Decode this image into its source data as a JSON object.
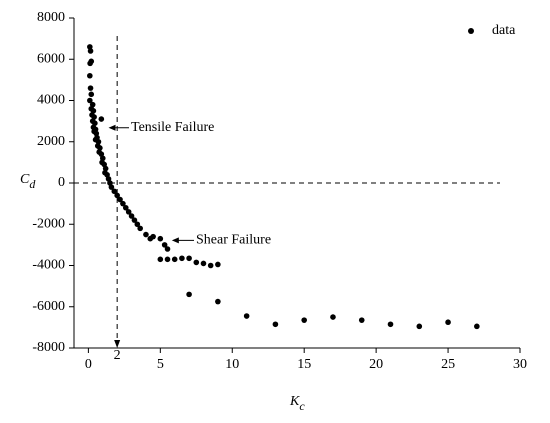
{
  "chart_data": {
    "type": "scatter",
    "xlabel": "K",
    "xlabel_subscript": "c",
    "ylabel": "C",
    "ylabel_subscript": "d",
    "xlim": [
      -1,
      30
    ],
    "xticks": [
      0,
      5,
      10,
      15,
      20,
      25,
      30
    ],
    "ylim": [
      -8000,
      8000
    ],
    "yticks": [
      -8000,
      -6000,
      -4000,
      -2000,
      0,
      2000,
      4000,
      6000,
      8000
    ],
    "grid": false,
    "legend": "upper right",
    "vline": 2,
    "hline": 0,
    "annotations": [
      "Tensile Failure",
      "Shear Failure"
    ],
    "series": [
      {
        "name": "data",
        "color": "#000000",
        "x": [
          0.1,
          0.15,
          0.2,
          0.12,
          0.1,
          0.15,
          0.2,
          0.1,
          0.3,
          0.2,
          0.35,
          0.25,
          0.4,
          0.3,
          0.45,
          0.35,
          0.5,
          0.4,
          0.55,
          0.6,
          0.5,
          0.7,
          0.65,
          0.8,
          0.75,
          0.9,
          1.0,
          0.95,
          1.1,
          1.2,
          1.15,
          1.3,
          1.4,
          1.5,
          1.6,
          1.8,
          2.0,
          2.2,
          2.4,
          2.6,
          2.8,
          3.0,
          3.2,
          3.4,
          3.6,
          4.0,
          4.5,
          4.3,
          5.0,
          5.3,
          5.5,
          0.9,
          5.0,
          5.5,
          6.0,
          6.5,
          7.0,
          7.5,
          8.0,
          8.5,
          9.0,
          7.0,
          9.0,
          11,
          13,
          15,
          17,
          19,
          21,
          23,
          25,
          27
        ],
        "values": [
          6600,
          6400,
          5900,
          5800,
          5200,
          4600,
          4300,
          4000,
          3800,
          3600,
          3500,
          3300,
          3200,
          3000,
          2900,
          2700,
          2600,
          2500,
          2400,
          2200,
          2100,
          2000,
          1800,
          1700,
          1500,
          1400,
          1200,
          1000,
          900,
          700,
          500,
          400,
          200,
          0,
          -200,
          -400,
          -600,
          -800,
          -1000,
          -1200,
          -1400,
          -1600,
          -1800,
          -2000,
          -2200,
          -2500,
          -2600,
          -2700,
          -2700,
          -3000,
          -3200,
          3100,
          -3700,
          -3700,
          -3700,
          -3650,
          -3650,
          -3850,
          -3900,
          -4000,
          -3950,
          -5400,
          -5750,
          -6450,
          -6850,
          -6650,
          -6500,
          -6650,
          -6850,
          -6950,
          -6750,
          -6950
        ]
      }
    ]
  }
}
